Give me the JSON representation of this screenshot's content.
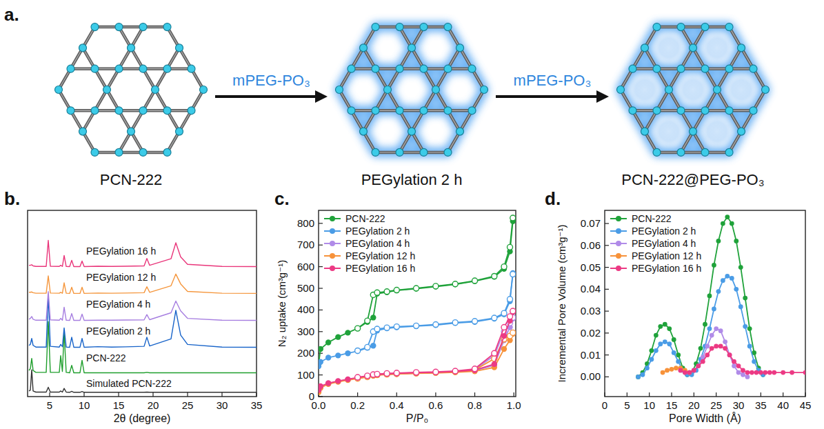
{
  "diagram": {
    "panel_label": "a.",
    "stages": [
      "PCN-222",
      "PEGylation 2 h",
      "PCN-222@PEG-PO₃"
    ],
    "arrows": [
      "mPEG-PO₃",
      "mPEG-PO₃"
    ]
  },
  "chart_data": [
    {
      "type": "line",
      "panel_label": "b.",
      "x_label": "2θ (degree)",
      "xlim": [
        1.8,
        35
      ],
      "xticks": [
        5,
        10,
        15,
        20,
        25,
        30,
        35
      ],
      "ylim": [
        0,
        10
      ],
      "tick_labels": "x",
      "x": [
        2,
        2.2,
        2.4,
        2.6,
        3,
        4.5,
        4.8,
        5.1,
        6.4,
        6.6,
        6.85,
        7.1,
        7.4,
        7.9,
        8.2,
        8.5,
        9.4,
        9.7,
        10,
        12,
        14,
        16,
        18.7,
        19.1,
        19.5,
        22.6,
        23.3,
        24,
        25,
        30,
        35
      ],
      "series": [
        {
          "name": "Simulated PCN-222",
          "color": "#333333",
          "values": [
            0.3,
            0.35,
            1.44,
            0.3,
            0.24,
            0.24,
            0.5,
            0.24,
            0.24,
            0.3,
            0.24,
            0.44,
            0.24,
            0.23,
            0.28,
            0.23,
            0.23,
            0.27,
            0.23,
            0.23,
            0.23,
            0.23,
            0.23,
            0.24,
            0.23,
            0.23,
            0.23,
            0.23,
            0.23,
            0.23,
            0.23
          ]
        },
        {
          "name": "PCN-222",
          "color": "#1f9e2c",
          "values": [
            1.4,
            1.5,
            2.05,
            1.4,
            1.3,
            1.3,
            4.03,
            1.3,
            1.3,
            2.2,
            1.35,
            3.46,
            1.3,
            1.28,
            1.68,
            1.28,
            1.28,
            1.95,
            1.28,
            1.28,
            1.28,
            1.28,
            1.28,
            1.3,
            1.28,
            1.28,
            1.28,
            1.28,
            1.28,
            1.28,
            1.28
          ]
        },
        {
          "name": "PEGylation 2 h",
          "color": "#1763c9",
          "values": [
            2.75,
            2.8,
            3.12,
            2.75,
            2.66,
            2.66,
            5.47,
            2.7,
            2.66,
            2.8,
            2.68,
            3.69,
            2.66,
            2.65,
            3.19,
            2.65,
            2.65,
            3.12,
            2.65,
            2.68,
            2.66,
            2.67,
            2.7,
            3.19,
            2.72,
            3.1,
            4.63,
            3.3,
            2.8,
            2.66,
            2.65
          ]
        },
        {
          "name": "PEGylation 4 h",
          "color": "#a67ee0",
          "values": [
            4.15,
            4.2,
            4.3,
            4.15,
            4.1,
            4.1,
            5.64,
            4.12,
            4.1,
            4.2,
            4.1,
            4.8,
            4.1,
            4.09,
            4.46,
            4.09,
            4.09,
            4.43,
            4.09,
            4.1,
            4.1,
            4.11,
            4.12,
            4.4,
            4.13,
            4.5,
            5.13,
            4.6,
            4.2,
            4.1,
            4.09
          ]
        },
        {
          "name": "PEGylation 12 h",
          "color": "#f5963c",
          "values": [
            5.6,
            5.6,
            5.62,
            5.58,
            5.55,
            5.55,
            6.48,
            5.56,
            5.55,
            5.6,
            5.55,
            6.11,
            5.55,
            5.54,
            5.87,
            5.54,
            5.54,
            5.87,
            5.54,
            5.56,
            5.55,
            5.56,
            5.58,
            5.9,
            5.6,
            5.95,
            6.58,
            6.05,
            5.65,
            5.55,
            5.54
          ]
        },
        {
          "name": "PEGylation 16 h",
          "color": "#e9357a",
          "values": [
            7.05,
            7.05,
            7.08,
            7.02,
            6.99,
            6.99,
            8.39,
            7.0,
            6.99,
            7.05,
            6.99,
            7.58,
            6.99,
            6.98,
            7.32,
            6.98,
            6.98,
            7.28,
            6.98,
            7.0,
            6.99,
            7.0,
            7.02,
            7.42,
            7.05,
            7.4,
            8.26,
            7.5,
            7.1,
            6.99,
            6.98
          ]
        }
      ]
    },
    {
      "type": "line",
      "panel_label": "c.",
      "x_label": "P/P₀",
      "y_label": "N₂ uptake (cm³g⁻¹)",
      "xlim": [
        0,
        1.01
      ],
      "xticks": [
        {
          "value": 0,
          "label": "0.0"
        },
        0.2,
        0.4,
        0.6,
        0.8,
        {
          "value": 1,
          "label": "1.0"
        }
      ],
      "ylim": [
        0,
        860
      ],
      "yticks": [
        0,
        100,
        200,
        300,
        400,
        500,
        600,
        700,
        800
      ],
      "marker": "circle",
      "legend": "upper left",
      "series": [
        {
          "name": "PCN-222",
          "color": "#1fa23a",
          "x": [
            0,
            0.01,
            0.05,
            0.1,
            0.15,
            0.2,
            0.25,
            0.28,
            0.3,
            0.35,
            0.4,
            0.5,
            0.6,
            0.7,
            0.8,
            0.9,
            0.95,
            0.98,
            0.995
          ],
          "values": [
            150,
            220,
            250,
            275,
            295,
            315,
            345,
            365,
            475,
            482,
            490,
            498,
            508,
            518,
            533,
            553,
            590,
            670,
            810
          ],
          "desorption": [
            null,
            null,
            null,
            null,
            null,
            315,
            350,
            470,
            480,
            485,
            492,
            500,
            510,
            520,
            535,
            556,
            600,
            690,
            825
          ]
        },
        {
          "name": "PEGylation 2 h",
          "color": "#4a9ce6",
          "x": [
            0,
            0.01,
            0.05,
            0.1,
            0.15,
            0.2,
            0.25,
            0.28,
            0.3,
            0.35,
            0.4,
            0.5,
            0.6,
            0.7,
            0.8,
            0.9,
            0.95,
            0.98,
            0.995
          ],
          "values": [
            140,
            160,
            180,
            190,
            200,
            210,
            225,
            235,
            305,
            315,
            320,
            325,
            330,
            340,
            345,
            360,
            380,
            440,
            570
          ],
          "desorption": [
            null,
            null,
            null,
            null,
            null,
            212,
            228,
            300,
            312,
            318,
            323,
            327,
            333,
            342,
            348,
            363,
            385,
            450,
            565
          ]
        },
        {
          "name": "PEGylation 4 h",
          "color": "#b08be8",
          "x": [
            0,
            0.01,
            0.05,
            0.1,
            0.15,
            0.2,
            0.25,
            0.28,
            0.3,
            0.35,
            0.4,
            0.5,
            0.6,
            0.7,
            0.8,
            0.9,
            0.95,
            0.98,
            0.995
          ],
          "values": [
            25,
            45,
            60,
            70,
            78,
            85,
            92,
            98,
            100,
            103,
            105,
            108,
            110,
            114,
            120,
            145,
            260,
            320,
            360
          ],
          "desorption": [
            null,
            null,
            null,
            null,
            null,
            86,
            93,
            100,
            101,
            104,
            106,
            109,
            112,
            116,
            125,
            190,
            300,
            340,
            365
          ]
        },
        {
          "name": "PEGylation 12 h",
          "color": "#f7923a",
          "x": [
            0,
            0.01,
            0.05,
            0.1,
            0.15,
            0.2,
            0.25,
            0.28,
            0.3,
            0.35,
            0.4,
            0.5,
            0.6,
            0.7,
            0.8,
            0.9,
            0.95,
            0.98,
            0.995
          ],
          "values": [
            20,
            40,
            58,
            68,
            76,
            83,
            90,
            96,
            99,
            102,
            104,
            107,
            109,
            112,
            117,
            135,
            220,
            260,
            290
          ],
          "desorption": [
            null,
            null,
            null,
            null,
            null,
            84,
            91,
            98,
            100,
            103,
            105,
            108,
            111,
            115,
            123,
            175,
            265,
            280,
            295
          ]
        },
        {
          "name": "PEGylation 16 h",
          "color": "#ec3a84",
          "x": [
            0,
            0.01,
            0.05,
            0.1,
            0.15,
            0.2,
            0.25,
            0.28,
            0.3,
            0.35,
            0.4,
            0.5,
            0.6,
            0.7,
            0.8,
            0.9,
            0.95,
            0.98,
            0.995
          ],
          "values": [
            30,
            48,
            62,
            72,
            80,
            88,
            95,
            100,
            102,
            105,
            107,
            110,
            112,
            116,
            122,
            150,
            280,
            350,
            390
          ],
          "desorption": [
            null,
            null,
            null,
            null,
            null,
            89,
            96,
            102,
            104,
            107,
            109,
            112,
            114,
            118,
            128,
            200,
            320,
            370,
            395
          ]
        }
      ]
    },
    {
      "type": "line",
      "panel_label": "d.",
      "x_label": "Pore Width (Å)",
      "y_label": "Incremental Pore Volume (cm³g⁻¹)",
      "xlim": [
        0,
        45
      ],
      "xticks": [
        0,
        5,
        10,
        15,
        20,
        25,
        30,
        35,
        40,
        45
      ],
      "ylim": [
        -0.009,
        0.076
      ],
      "yticks": [
        {
          "value": 0,
          "label": "0.00"
        },
        {
          "value": 0.01,
          "label": "0.01"
        },
        {
          "value": 0.02,
          "label": "0.02"
        },
        {
          "value": 0.03,
          "label": "0.03"
        },
        {
          "value": 0.04,
          "label": "0.04"
        },
        {
          "value": 0.05,
          "label": "0.05"
        },
        {
          "value": 0.06,
          "label": "0.06"
        },
        {
          "value": 0.07,
          "label": "0.07"
        }
      ],
      "marker": "circle",
      "legend": "upper left",
      "series": [
        {
          "name": "PCN-222",
          "color": "#1fa23a",
          "x": [
            7.5,
            8.5,
            9.5,
            10.5,
            11.5,
            12.5,
            13.5,
            14.5,
            15.5,
            16.5,
            17.5,
            18.5,
            19.5,
            20.5,
            21.5,
            22.5,
            23.5,
            24.5,
            25.5,
            26.5,
            27.5,
            28.5,
            29.5,
            30.5,
            31.5,
            32.5,
            33.5,
            34.5,
            35.5
          ],
          "values": [
            0,
            0.002,
            0.006,
            0.012,
            0.019,
            0.023,
            0.024,
            0.022,
            0.017,
            0.01,
            0.004,
            0.001,
            0.002,
            0.006,
            0.013,
            0.024,
            0.037,
            0.051,
            0.062,
            0.07,
            0.073,
            0.07,
            0.062,
            0.05,
            0.036,
            0.022,
            0.011,
            0.004,
            0.001
          ]
        },
        {
          "name": "PEGylation 2 h",
          "color": "#4a9ce6",
          "x": [
            7.5,
            8.5,
            9.5,
            10.5,
            11.5,
            12.5,
            13.5,
            14.5,
            15.5,
            16.5,
            17.5,
            18.5,
            19.5,
            20.5,
            21.5,
            22.5,
            23.5,
            24.5,
            25.5,
            26.5,
            27.5,
            28.5,
            29.5,
            30.5,
            31.5,
            32.5,
            33.5,
            34.5,
            35.5
          ],
          "values": [
            0,
            0.001,
            0.004,
            0.008,
            0.012,
            0.015,
            0.016,
            0.015,
            0.011,
            0.007,
            0.003,
            0.001,
            0.001,
            0.003,
            0.008,
            0.014,
            0.022,
            0.031,
            0.039,
            0.044,
            0.046,
            0.045,
            0.04,
            0.032,
            0.023,
            0.014,
            0.007,
            0.003,
            0.001
          ]
        },
        {
          "name": "PEGylation 4 h",
          "color": "#b08be8",
          "x": [
            17,
            18,
            19,
            20,
            21,
            22,
            23,
            24,
            25,
            26,
            27,
            28,
            29,
            30,
            31,
            32
          ],
          "values": [
            0.003,
            0.002,
            0.002,
            0.003,
            0.005,
            0.009,
            0.014,
            0.019,
            0.022,
            0.021,
            0.016,
            0.01,
            0.005,
            0.002,
            0.001,
            0
          ]
        },
        {
          "name": "PEGylation 12 h",
          "color": "#f7923a",
          "x": [
            13,
            14,
            15,
            16,
            17,
            18,
            19
          ],
          "values": [
            0.002,
            0.003,
            0.0035,
            0.004,
            0.004,
            0.003,
            0.002
          ]
        },
        {
          "name": "PEGylation 16 h",
          "color": "#ec3a84",
          "x": [
            17,
            18,
            19,
            20,
            21,
            22,
            23,
            24,
            25,
            26,
            27,
            28,
            29,
            30,
            31,
            32,
            33,
            34,
            35,
            36,
            37,
            38,
            40,
            42,
            45
          ],
          "values": [
            0.003,
            0.002,
            0.002,
            0.003,
            0.005,
            0.007,
            0.01,
            0.013,
            0.014,
            0.014,
            0.013,
            0.01,
            0.007,
            0.005,
            0.003,
            0.002,
            0.002,
            0.002,
            0.002,
            0.002,
            0.002,
            0.002,
            0.002,
            0.002,
            0.002
          ]
        }
      ]
    }
  ]
}
